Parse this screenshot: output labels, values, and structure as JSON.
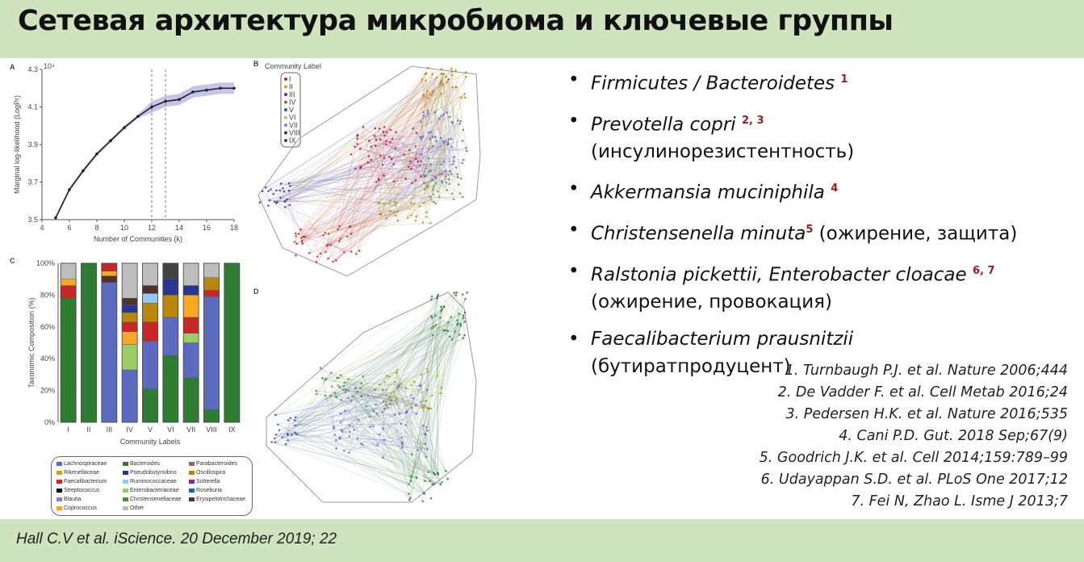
{
  "slide": {
    "title": "Сетевая архитектура микробиома и ключевые группы",
    "footer": "Hall C.V et al. iScience. 20 December 2019; 22"
  },
  "colors": {
    "band": "#cfe3bf",
    "reference_mark": "#9a1b1b"
  },
  "bullets": [
    {
      "lines": [
        {
          "italic": "Firmicutes / Bacteroidetes ",
          "sup": "1"
        }
      ]
    },
    {
      "lines": [
        {
          "italic": "Prevotella copri ",
          "sup": "2, 3"
        },
        {
          "normal": "(инсулинорезистентность)"
        }
      ]
    },
    {
      "lines": [
        {
          "italic": "Akkermansia muciniphila ",
          "sup": "4"
        }
      ]
    },
    {
      "lines": [
        {
          "italic": "Christensenella minuta",
          "sup": "5",
          "normal": " (ожирение, защита)"
        }
      ]
    },
    {
      "lines": [
        {
          "italic": "Ralstonia pickettii, Enterobacter cloacae ",
          "sup": "6, 7"
        },
        {
          "normal": "(ожирение, провокация)"
        }
      ]
    },
    {
      "lines": [
        {
          "italic": "Faecalibacterium prausnitzii"
        },
        {
          "normal": "(бутиратпродуцент)"
        }
      ]
    }
  ],
  "references": [
    "1.    Turnbaugh P.J. et al. Nature 2006;444",
    "2.    De Vadder F. et al. Cell Metab 2016;24",
    "3.    Pedersen H.K. et al. Nature 2016;535",
    "4.    Cani P.D. Gut. 2018 Sep;67(9)",
    "5.    Goodrich J.K. et al. Cell 2014;159:789–99",
    "6.    Udayappan S.D. et al. PLoS One 2017;12",
    "7.    Fei N, Zhao L. Isme J 2013;7"
  ],
  "figure": {
    "panel_a": {
      "label": "A",
      "xlabel": "Number of Communities (k)",
      "ylabel": "Marginal log-likelihood (LogPr)",
      "exponent": "10⁴",
      "x": [
        5,
        6,
        7,
        8,
        9,
        10,
        11,
        12,
        13,
        14,
        15,
        16,
        17,
        18
      ],
      "y": [
        3.51,
        3.66,
        3.76,
        3.85,
        3.92,
        3.99,
        4.05,
        4.1,
        4.13,
        4.14,
        4.18,
        4.19,
        4.2,
        4.2
      ],
      "xticks": [
        "4",
        "6",
        "8",
        "10",
        "12",
        "14",
        "16",
        "18"
      ],
      "yticks": [
        "3.5",
        "3.7",
        "3.9",
        "4.1",
        "4.3"
      ],
      "dashed_at": [
        12,
        13
      ]
    },
    "panel_b": {
      "label": "B",
      "legend_title": "Community Label",
      "legend_items": [
        "I",
        "II",
        "III",
        "IV",
        "V",
        "VI",
        "VII",
        "VIII",
        "IX"
      ]
    },
    "panel_c": {
      "label": "C",
      "ylabel": "Taxonomic Composition (%)",
      "xlabel": "Community Labels",
      "categories": [
        "I",
        "II",
        "III",
        "IV",
        "V",
        "VI",
        "VII",
        "VIII",
        "IX"
      ],
      "yticks": [
        "0%",
        "20%",
        "40%",
        "60%",
        "80%",
        "100%"
      ]
    },
    "panel_d": {
      "label": "D"
    },
    "legend": [
      "Lachnospiraceae",
      "Bacteroides",
      "Parabacteroides",
      "Rikenellaceae",
      "Pseudobutyrivibrio",
      "Oscillospira",
      "Faecalibacterium",
      "Ruminococcaceae",
      "Sutterella",
      "Streptococcus",
      "Enterobacteriaceae",
      "Roseburia",
      "Blautia",
      "Christensenellaceae",
      "Erysipelotrichaceae",
      "Coprococcus",
      "Other"
    ]
  }
}
